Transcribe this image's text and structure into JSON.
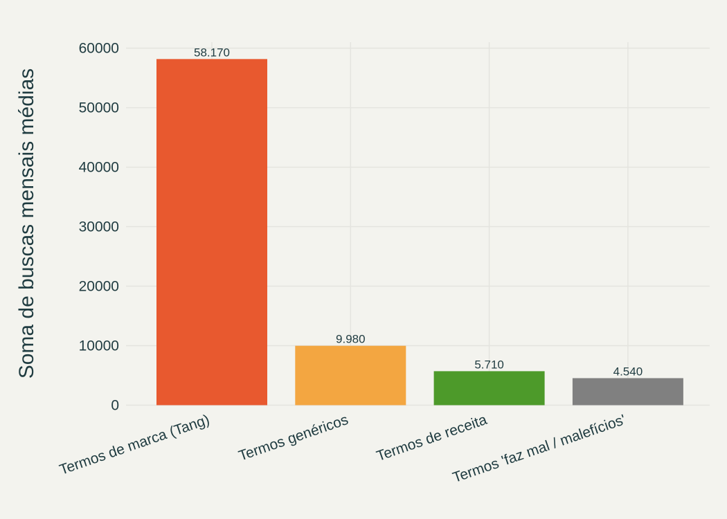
{
  "chart_data": {
    "type": "bar",
    "title": "",
    "xlabel": "",
    "ylabel": "Soma de buscas mensais médias",
    "ylim": [
      0,
      61000
    ],
    "yticks": [
      0,
      10000,
      20000,
      30000,
      40000,
      50000,
      60000
    ],
    "grid": true,
    "categories": [
      "Termos de marca (Tang)",
      "Termos genéricos",
      "Termos de receita",
      "Termos 'faz mal / malefícios'"
    ],
    "values": [
      58170,
      9980,
      5710,
      4540
    ],
    "data_labels": [
      "58.170",
      "9.980",
      "5.710",
      "4.540"
    ],
    "colors": [
      "#e8592f",
      "#f3a641",
      "#4d9a2a",
      "#808080"
    ]
  }
}
